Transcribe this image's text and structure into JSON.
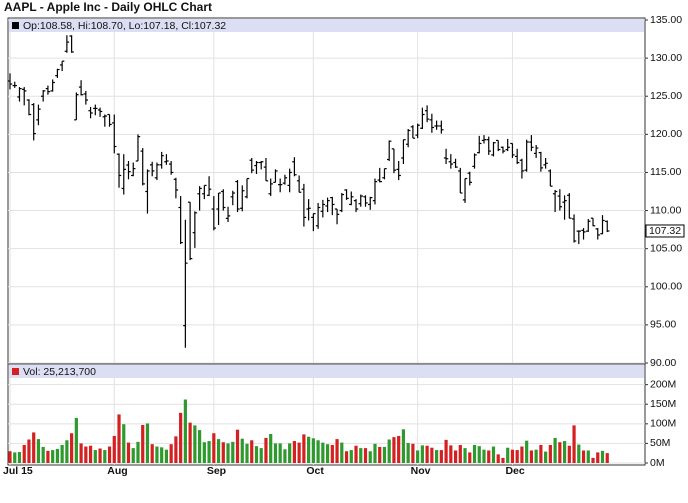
{
  "chart_data": [
    {
      "type": "ohlc",
      "title": "AAPL - Apple Inc - Daily OHLC Chart",
      "header": "Op:108.58, Hi:108.70, Lo:107.18, Cl:107.32",
      "color": "#000000",
      "grid": true,
      "categories": [
        "Jul 15",
        null,
        null,
        null,
        null,
        null,
        null,
        null,
        null,
        null,
        null,
        null,
        null,
        null,
        null,
        null,
        null,
        null,
        null,
        null,
        null,
        null,
        "Aug",
        null,
        null,
        null,
        null,
        null,
        null,
        null,
        null,
        null,
        null,
        null,
        null,
        null,
        null,
        null,
        null,
        null,
        null,
        null,
        null,
        "Sep",
        null,
        null,
        null,
        null,
        null,
        null,
        null,
        null,
        null,
        null,
        null,
        null,
        null,
        null,
        null,
        null,
        null,
        null,
        null,
        null,
        "Oct",
        null,
        null,
        null,
        null,
        null,
        null,
        null,
        null,
        null,
        null,
        null,
        null,
        null,
        null,
        null,
        null,
        null,
        null,
        null,
        null,
        null,
        "Nov",
        null,
        null,
        null,
        null,
        null,
        null,
        null,
        null,
        null,
        null,
        null,
        null,
        null,
        null,
        null,
        null,
        null,
        null,
        null,
        "Dec",
        null,
        null,
        null,
        null,
        null,
        null,
        null,
        null,
        null,
        null,
        null,
        null,
        null,
        null,
        null,
        null,
        null,
        null,
        null,
        null
      ],
      "open": [
        127.0,
        126.4,
        124.9,
        125.9,
        124.5,
        123.9,
        121.9,
        125.0,
        126.0,
        125.7,
        127.7,
        129.1,
        130.9,
        132.9,
        121.9,
        126.2,
        125.3,
        123.1,
        123.4,
        123.2,
        122.3,
        122.6,
        121.5,
        117.4,
        112.9,
        115.97,
        114.6,
        116.5,
        117.8,
        112.5,
        116.0,
        114.3,
        116.0,
        116.4,
        116.1,
        114.1,
        110.4,
        94.9,
        111.1,
        107.1,
        112.2,
        112.2,
        112.0,
        110.2,
        110.2,
        112.5,
        108.97,
        111.8,
        113.8,
        110.3,
        111.8,
        116.6,
        115.9,
        116.3,
        115.7,
        112.2,
        113.7,
        113.4,
        113.6,
        113.3,
        116.4,
        113.9,
        112.8,
        110.2,
        109.1,
        108.0,
        109.9,
        110.6,
        111.7,
        110.2,
        110.0,
        112.7,
        110.8,
        111.3,
        110.9,
        111.8,
        110.8,
        111.3,
        114.0,
        114.3,
        116.7,
        118.1,
        115.4,
        116.9,
        118.7,
        120.99,
        119.9,
        120.8,
        123.1,
        121.9,
        121.1,
        121.1,
        116.9,
        116.4,
        116.3,
        115.2,
        111.4,
        114.9,
        115.8,
        117.6,
        119.2,
        119.3,
        117.3,
        119.2,
        118.3,
        117.99,
        118.8,
        117.1,
        116.6,
        115.3,
        118.98,
        117.5,
        117.6,
        116.0,
        115.2,
        112.2,
        111.9,
        111.1,
        112.0,
        108.9,
        107.3,
        107.4,
        107.3,
        109.0,
        107.6,
        106.96,
        108.58
      ],
      "high": [
        128.0,
        126.9,
        126.2,
        126.2,
        124.6,
        124.1,
        123.9,
        125.8,
        126.4,
        127.2,
        128.6,
        129.6,
        133.0,
        133.0,
        125.5,
        127.1,
        125.7,
        123.6,
        123.9,
        123.5,
        122.6,
        122.6,
        122.6,
        117.5,
        117.4,
        116.5,
        116.3,
        119.99,
        118.2,
        115.4,
        116.4,
        116.3,
        117.7,
        117.4,
        116.5,
        114.3,
        111.9,
        108.8,
        111.1,
        109.9,
        113.2,
        113.3,
        114.5,
        111.9,
        112.3,
        112.8,
        110.5,
        112.6,
        114.0,
        113.3,
        114.2,
        116.9,
        116.5,
        116.5,
        116.9,
        114.2,
        115.4,
        114.2,
        114.7,
        115.5,
        117.0,
        114.6,
        113.5,
        111.5,
        109.6,
        111.0,
        111.4,
        111.7,
        111.8,
        110.2,
        112.3,
        112.8,
        112.5,
        111.5,
        112.1,
        112.0,
        111.8,
        114.2,
        115.6,
        115.5,
        119.2,
        118.1,
        116.5,
        119.3,
        120.7,
        121.2,
        121.4,
        123.5,
        123.8,
        122.7,
        121.8,
        121.8,
        118.1,
        117.4,
        116.8,
        115.6,
        114.2,
        115.1,
        117.5,
        119.8,
        119.9,
        119.7,
        119.0,
        119.2,
        118.4,
        119.4,
        118.8,
        118.1,
        116.8,
        119.3,
        119.9,
        118.6,
        117.7,
        116.9,
        115.4,
        112.7,
        112.8,
        111.99,
        112.3,
        109.5,
        107.4,
        107.7,
        108.9,
        109.0,
        107.7,
        109.4,
        108.7
      ],
      "low": [
        125.9,
        126.1,
        124.3,
        123.8,
        122.5,
        119.2,
        121.2,
        124.3,
        125.2,
        125.6,
        127.4,
        128.3,
        130.7,
        130.7,
        121.9,
        125.1,
        123.9,
        122.1,
        122.5,
        122.3,
        121.0,
        121.0,
        117.5,
        113.0,
        112.1,
        114.1,
        114.5,
        116.5,
        113.3,
        109.6,
        114.5,
        114.0,
        115.5,
        116.0,
        114.7,
        111.6,
        105.6,
        92.0,
        103.5,
        105.1,
        110.0,
        111.5,
        111.9,
        107.4,
        108.1,
        110.0,
        108.5,
        110.7,
        109.8,
        109.9,
        111.6,
        114.9,
        114.8,
        115.4,
        113.9,
        111.9,
        113.7,
        112.4,
        113.4,
        112.4,
        114.5,
        112.4,
        107.9,
        108.7,
        107.3,
        107.6,
        109.1,
        109.8,
        109.4,
        108.2,
        109.8,
        111.4,
        110.7,
        109.8,
        110.5,
        110.5,
        110.1,
        110.8,
        113.7,
        114.1,
        116.5,
        114.9,
        113.99,
        116.1,
        118.3,
        119.5,
        119.5,
        120.7,
        121.6,
        120.2,
        120.6,
        120.1,
        116.1,
        115.5,
        115.6,
        112.3,
        111.0,
        113.3,
        115.5,
        117.5,
        118.8,
        117.3,
        117.1,
        117.8,
        117.5,
        117.8,
        116.9,
        116.1,
        114.2,
        115.1,
        117.8,
        116.9,
        115.1,
        115.5,
        113.2,
        109.8,
        110.0,
        108.8,
        108.98,
        105.8,
        105.6,
        106.2,
        107.2,
        107.95,
        106.2,
        106.9,
        107.18
      ],
      "close": [
        126.6,
        126.4,
        126.0,
        125.7,
        122.6,
        120.1,
        123.3,
        125.7,
        125.6,
        126.8,
        128.5,
        129.6,
        132.1,
        130.8,
        125.2,
        125.2,
        124.5,
        122.8,
        123.4,
        123.0,
        122.4,
        121.3,
        118.4,
        114.6,
        115.4,
        115.1,
        115.5,
        119.7,
        113.5,
        115.2,
        115.2,
        116.0,
        117.2,
        116.5,
        115.0,
        112.7,
        105.8,
        103.1,
        103.7,
        109.7,
        112.9,
        113.3,
        112.8,
        107.7,
        112.3,
        110.4,
        109.3,
        112.3,
        110.2,
        112.6,
        114.2,
        115.3,
        116.3,
        116.4,
        113.9,
        113.5,
        115.2,
        113.4,
        114.3,
        115.0,
        114.7,
        112.4,
        109.1,
        110.3,
        109.6,
        110.4,
        110.8,
        111.3,
        110.8,
        109.5,
        112.1,
        111.6,
        111.8,
        110.2,
        111.9,
        111.0,
        111.7,
        113.8,
        113.8,
        115.5,
        119.1,
        115.3,
        114.6,
        119.3,
        120.5,
        119.5,
        121.2,
        122.6,
        122.0,
        120.9,
        121.1,
        120.6,
        116.8,
        116.1,
        115.7,
        112.3,
        114.2,
        113.7,
        117.3,
        118.8,
        119.3,
        117.8,
        118.9,
        118.0,
        117.8,
        118.3,
        117.3,
        116.3,
        115.2,
        119.0,
        118.3,
        118.2,
        115.6,
        116.2,
        113.2,
        112.5,
        110.5,
        111.3,
        109.0,
        106.0,
        107.3,
        107.2,
        108.6,
        108.0,
        106.8,
        108.7,
        107.32
      ],
      "ylim": [
        90,
        135
      ],
      "yticks": [
        {
          "value": 135,
          "label": "135.00"
        },
        {
          "value": 130,
          "label": "130.00"
        },
        {
          "value": 125,
          "label": "125.00"
        },
        {
          "value": 120,
          "label": "120.00"
        },
        {
          "value": 115,
          "label": "115.00"
        },
        {
          "value": 110,
          "label": "110.00"
        },
        {
          "value": 105,
          "label": "105.00"
        },
        {
          "value": 100,
          "label": "100.00"
        },
        {
          "value": 95,
          "label": "95.00"
        },
        {
          "value": 90,
          "label": "90.00"
        }
      ]
    },
    {
      "type": "bar",
      "header": "Vol: 25,213,700",
      "up_color": "#2e9a2e",
      "down_color": "#d42020",
      "grid": true,
      "values": [
        30,
        27,
        28,
        46,
        60,
        78,
        61,
        41,
        31,
        33,
        36,
        46,
        58,
        76,
        115,
        50,
        42,
        44,
        33,
        37,
        33,
        42,
        69,
        124,
        99,
        52,
        38,
        54,
        97,
        101,
        48,
        42,
        40,
        34,
        48,
        68,
        128,
        162,
        103,
        96,
        84,
        53,
        56,
        76,
        61,
        53,
        50,
        54,
        85,
        62,
        49,
        58,
        43,
        38,
        64,
        74,
        50,
        50,
        35,
        50,
        56,
        52,
        73,
        67,
        63,
        58,
        52,
        48,
        46,
        61,
        52,
        30,
        33,
        44,
        38,
        38,
        30,
        49,
        41,
        41,
        60,
        66,
        69,
        86,
        51,
        49,
        32,
        45,
        44,
        39,
        33,
        33,
        59,
        45,
        32,
        46,
        38,
        27,
        46,
        43,
        34,
        32,
        42,
        22,
        13,
        39,
        34,
        33,
        42,
        57,
        32,
        34,
        46,
        29,
        46,
        64,
        53,
        56,
        44,
        96,
        47,
        32,
        32,
        13,
        27,
        31,
        25.2137
      ],
      "ylim": [
        0,
        245
      ],
      "yticks": [
        {
          "value": 200,
          "label": "200M"
        },
        {
          "value": 150,
          "label": "150M"
        },
        {
          "value": 100,
          "label": "100M"
        },
        {
          "value": 50,
          "label": "50M"
        },
        {
          "value": 0,
          "label": "0M"
        }
      ]
    }
  ]
}
